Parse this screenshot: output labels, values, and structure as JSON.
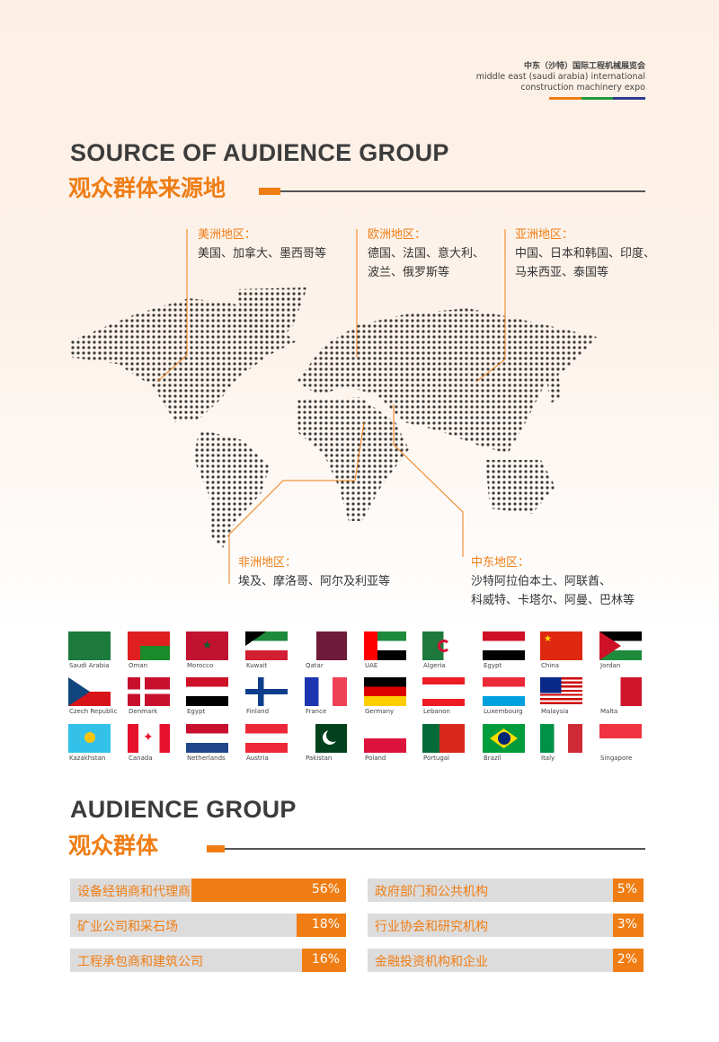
{
  "brand": {
    "cn": "中东（沙特）国际工程机械展览会",
    "en1": "middle east (saudi arabia) international",
    "en2": "construction machinery expo",
    "colors": [
      "#ef7d14",
      "#1f9a3a",
      "#2e3a8f"
    ]
  },
  "source": {
    "title_en": "SOURCE OF AUDIENCE GROUP",
    "title_cn": "观众群体来源地",
    "regions": [
      {
        "title": "美洲地区：",
        "desc": [
          "美国、加拿大、墨西哥等"
        ]
      },
      {
        "title": "欧洲地区：",
        "desc": [
          "德国、法国、意大利、",
          "波兰、俄罗斯等"
        ]
      },
      {
        "title": "亚洲地区：",
        "desc": [
          "中国、日本和韩国、印度、",
          "马来西亚、泰国等"
        ]
      },
      {
        "title": "非洲地区：",
        "desc": [
          "埃及、摩洛哥、阿尔及利亚等"
        ]
      },
      {
        "title": "中东地区：",
        "desc": [
          "沙特阿拉伯本土、阿联酋、",
          "科威特、卡塔尔、阿曼、巴林等"
        ]
      }
    ]
  },
  "flags": [
    "Saudi Arabia",
    "Oman",
    "Morocco",
    "Kuwait",
    "Qatar",
    "UAE",
    "Algeria",
    "Egypt",
    "China",
    "Jordan",
    "Czech Republic",
    "Denmark",
    "Egypt",
    "Finland",
    "France",
    "Germany",
    "Lebanon",
    "Luxembourg",
    "Malaysia",
    "Malta",
    "Kazakhstan",
    "Canada",
    "Netherlands",
    "Austria",
    "Pakistan",
    "Poland",
    "Portugal",
    "Brazil",
    "Italy",
    "Singapore"
  ],
  "audience": {
    "title_en": "AUDIENCE GROUP",
    "title_cn": "观众群体",
    "accent": "#ef7d14",
    "bars": [
      {
        "label": "设备经销商和代理商",
        "value": 56,
        "display": "56%"
      },
      {
        "label": "矿业公司和采石场",
        "value": 18,
        "display": "18%"
      },
      {
        "label": "工程承包商和建筑公司",
        "value": 16,
        "display": "16%"
      },
      {
        "label": "政府部门和公共机构",
        "value": 5,
        "display": "5%"
      },
      {
        "label": "行业协会和研究机构",
        "value": 3,
        "display": "3%"
      },
      {
        "label": "金融投资机构和企业",
        "value": 2,
        "display": "2%"
      }
    ]
  }
}
